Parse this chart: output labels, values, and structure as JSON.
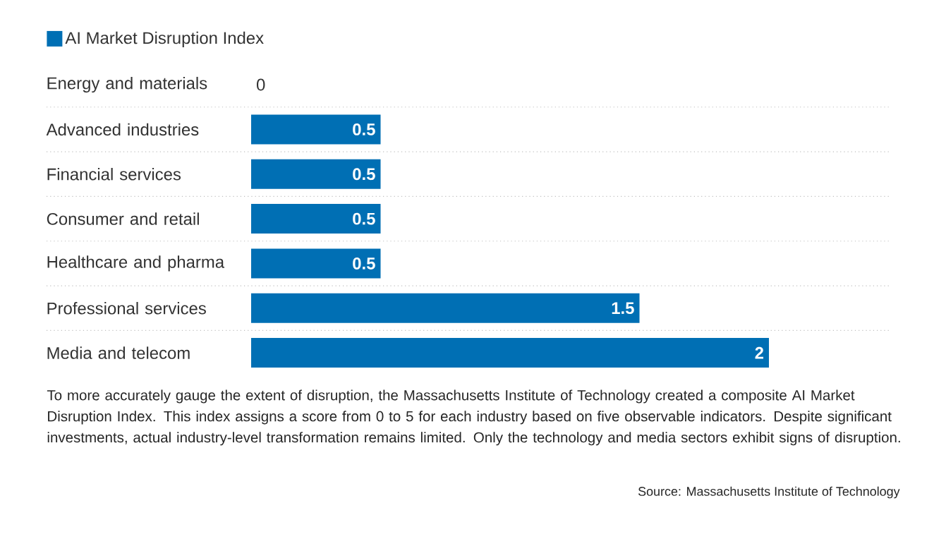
{
  "chart_data": {
    "type": "bar",
    "orientation": "horizontal",
    "categories": [
      "Energy and materials",
      "Advanced industries",
      "Financial services",
      "Consumer and retail",
      "Healthcare and pharma",
      "Professional services",
      "Media and telecom"
    ],
    "series": [
      {
        "name": "AI Market Disruption Index",
        "color": "#006fb4",
        "values": [
          0,
          0.5,
          0.5,
          0.5,
          0.5,
          1.5,
          2
        ]
      }
    ],
    "data_labels": true,
    "legend": "top left",
    "annotations": [
      "To more accurately gauge the extent of disruption, the Massachusetts Institute of Technology created a composite AI Market Disruption Index. This index assigns a score from 0 to 5 for each industry based on five observable indicators. Despite significant investments, actual industry-level transformation remains limited. Only the technology and media sectors exhibit signs of disruption.",
      "Source: Massachusetts Institute of Technology"
    ]
  }
}
